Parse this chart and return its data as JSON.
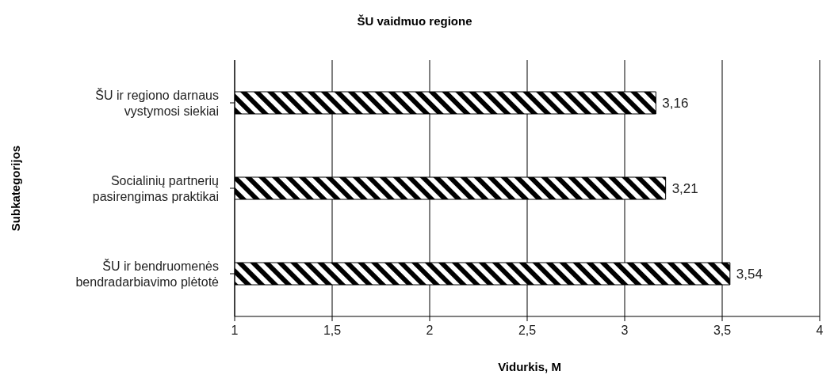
{
  "chart_data": {
    "type": "bar",
    "orientation": "horizontal",
    "title": "ŠU vaidmuo regione",
    "xlabel": "Vidurkis, M",
    "ylabel": "Subkategorijos",
    "categories": [
      "ŠU ir regiono darnaus vystymosi siekiai",
      "Socialinių partnerių pasirengimas praktikai",
      "ŠU ir bendruomenės bendradarbiavimo plėtotė"
    ],
    "values": [
      3.16,
      3.21,
      3.54
    ],
    "value_labels": [
      "3,16",
      "3,21",
      "3,54"
    ],
    "color": "#000000",
    "xlim": [
      1,
      4
    ],
    "xticks": [
      1,
      {
        "value": 1.5,
        "label": "1,5"
      },
      2,
      {
        "value": 2.5,
        "label": "2,5"
      },
      3,
      {
        "value": 3.5,
        "label": "3,5"
      },
      4
    ],
    "grid": "x",
    "legend": false
  }
}
